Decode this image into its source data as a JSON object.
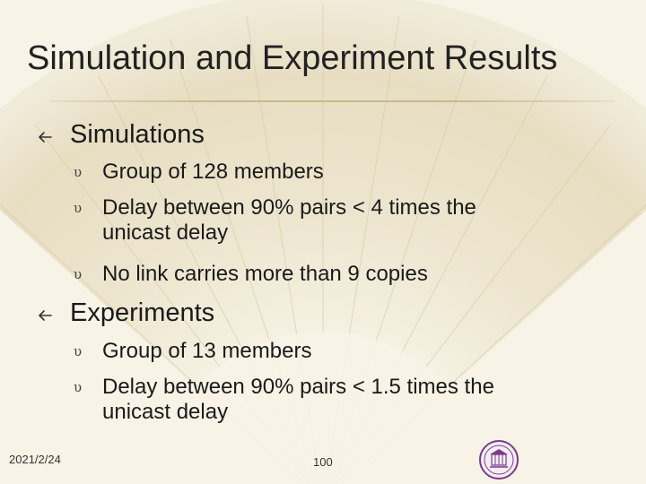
{
  "slide": {
    "title": "Simulation and Experiment Results",
    "sections": [
      {
        "heading": "Simulations",
        "items": [
          "Group of 128 members",
          "Delay between 90% pairs < 4 times the unicast delay",
          "No link carries more than 9 copies"
        ]
      },
      {
        "heading": "Experiments",
        "items": [
          "Group of 13 members",
          "Delay between 90% pairs < 1.5 times the unicast delay"
        ]
      }
    ],
    "l2_marker": "υ"
  },
  "footer": {
    "date": "2021/2/24",
    "page_number": "100"
  },
  "colors": {
    "background": "#f7f3e6",
    "title_rule": "#c9b88a",
    "seal": "#7a3b8a"
  },
  "icons": {
    "level1_bullet": "arrow-left-icon",
    "logo": "university-seal-icon"
  }
}
